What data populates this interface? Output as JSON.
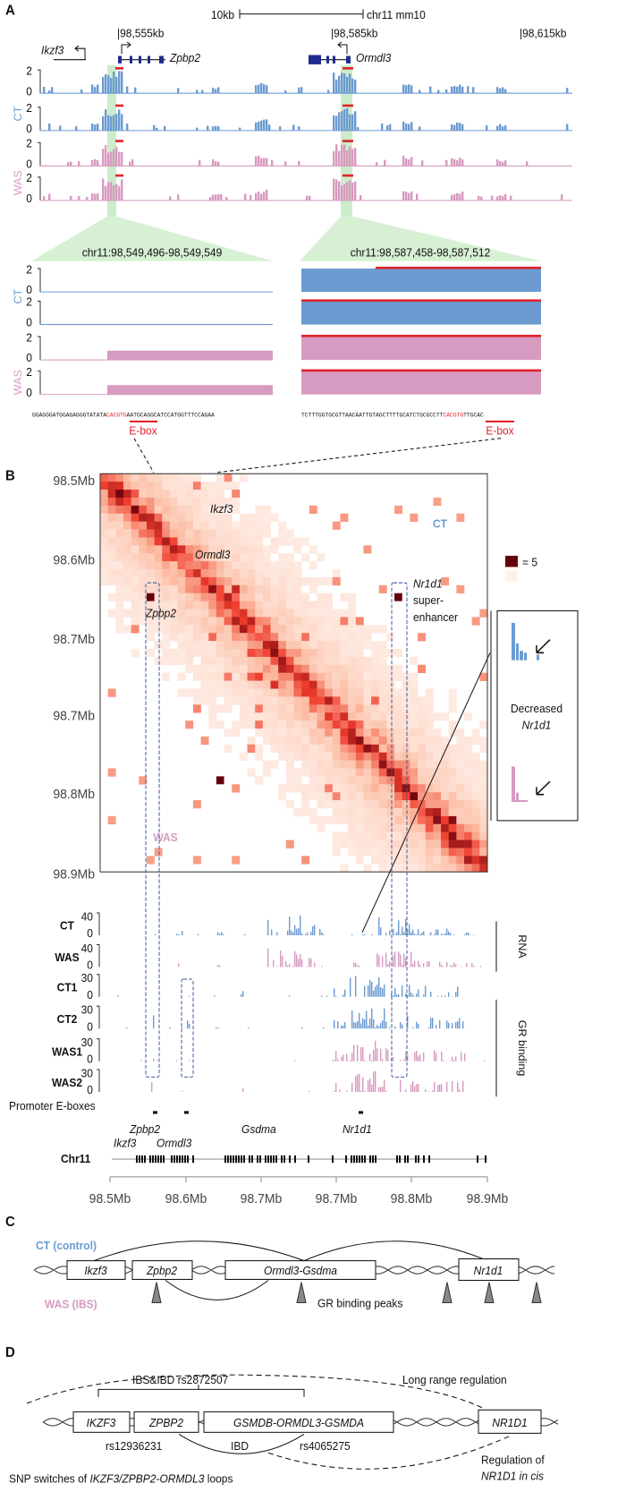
{
  "panel_a": {
    "label": "A",
    "scale_bar": "10kb",
    "assembly": "chr11 mm10",
    "coords": [
      "98,555kb",
      "98,585kb",
      "98,615kb"
    ],
    "genes": [
      "Ikzf3",
      "Zpbp2",
      "Ormdl3"
    ],
    "groups": [
      "CT",
      "WAS"
    ],
    "y_max": 2,
    "y_min": 0,
    "zoom_left": {
      "title": "chr11:98,549,496-98,549,549",
      "sequence": [
        "GGAGGGATGGAGAGGGTATATA",
        "CACGTG",
        "AATGCAGGCATCCATGGTTTCCAGAA"
      ],
      "motif": "E-box"
    },
    "zoom_right": {
      "title": "chr11:98,587,458-98,587,512",
      "sequence": [
        "TCTTTGGTGCGTTAACAATTGTAGCTTTTGCATCTGCGCCTT",
        "CACGTG",
        "TTGCAC"
      ],
      "motif": "E-box"
    }
  },
  "panel_b": {
    "label": "B",
    "y_labels": [
      "98.5Mb",
      "98.6Mb",
      "98.7Mb",
      "98.7Mb",
      "98.8Mb",
      "98.9Mb"
    ],
    "heatmap_genes": [
      "Ikzf3",
      "Ormdl3",
      "Zpbp2"
    ],
    "heatmap_groups": [
      "CT",
      "WAS"
    ],
    "nr1d1": [
      "Nr1d1",
      "super-",
      "enhancer"
    ],
    "legend": "= 5",
    "inset": [
      "Decreased",
      "Nr1d1"
    ],
    "tracks": [
      {
        "name": "CT",
        "max": 40,
        "min": 0
      },
      {
        "name": "WAS",
        "max": 40,
        "min": 0
      },
      {
        "name": "CT1",
        "max": 30,
        "min": 0
      },
      {
        "name": "CT2",
        "max": 30,
        "min": 0
      },
      {
        "name": "WAS1",
        "max": 30,
        "min": 0
      },
      {
        "name": "WAS2",
        "max": 30,
        "min": 0
      }
    ],
    "brackets": [
      "RNA",
      "GR binding"
    ],
    "promoter": "Promoter E-boxes",
    "gene_labels": [
      "Zpbp2",
      "Ikzf3",
      "Ormdl3",
      "Gsdma",
      "Nr1d1"
    ],
    "chromosome": "Chr11",
    "x_labels": [
      "98.5Mb",
      "98.6Mb",
      "98.7Mb",
      "98.7Mb",
      "98.8Mb",
      "98.9Mb"
    ]
  },
  "panel_c": {
    "label": "C",
    "ct": "CT (control)",
    "was": "WAS (IBS)",
    "genes": [
      "Ikzf3",
      "Zpbp2",
      "Ormdl3-Gsdma",
      "Nr1d1"
    ],
    "peaks": "GR binding peaks"
  },
  "panel_d": {
    "label": "D",
    "top": "IBS&IBD rs2872507",
    "long_range": "Long range regulation",
    "genes": [
      "IKZF3",
      "ZPBP2",
      "GSMDB-ORMDL3-GSMDA",
      "NR1D1"
    ],
    "snps": [
      "rs12936231",
      "IBD",
      "rs4065275"
    ],
    "snp_switches": [
      "SNP switches of ",
      "IKZF3/ZPBP2-ORMDL3",
      " loops"
    ],
    "cis": [
      "Regulation of",
      "NR1D1 in cis"
    ]
  }
}
